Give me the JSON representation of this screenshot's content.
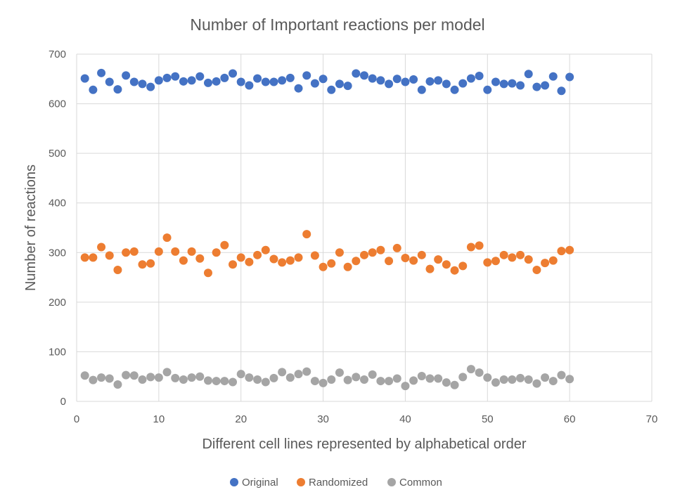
{
  "chart_data": {
    "type": "scatter",
    "title": "Number of Important reactions per model",
    "xlabel": "Different cell lines represented by alphabetical order",
    "ylabel": "Number of reactions",
    "xlim": [
      0,
      70
    ],
    "ylim": [
      0,
      700
    ],
    "xticks": [
      0,
      10,
      20,
      30,
      40,
      50,
      60,
      70
    ],
    "yticks": [
      0,
      100,
      200,
      300,
      400,
      500,
      600,
      700
    ],
    "grid": true,
    "legend_position": "bottom",
    "x": [
      1,
      2,
      3,
      4,
      5,
      6,
      7,
      8,
      9,
      10,
      11,
      12,
      13,
      14,
      15,
      16,
      17,
      18,
      19,
      20,
      21,
      22,
      23,
      24,
      25,
      26,
      27,
      28,
      29,
      30,
      31,
      32,
      33,
      34,
      35,
      36,
      37,
      38,
      39,
      40,
      41,
      42,
      43,
      44,
      45,
      46,
      47,
      48,
      49,
      50,
      51,
      52,
      53,
      54,
      55,
      56,
      57,
      58,
      59,
      60
    ],
    "series": [
      {
        "name": "Original",
        "color": "#4472c4",
        "values": [
          651,
          628,
          662,
          644,
          629,
          657,
          644,
          640,
          634,
          647,
          652,
          655,
          645,
          647,
          655,
          642,
          645,
          652,
          661,
          644,
          637,
          651,
          644,
          644,
          647,
          652,
          631,
          657,
          641,
          650,
          628,
          640,
          636,
          661,
          657,
          651,
          647,
          640,
          650,
          644,
          649,
          628,
          645,
          647,
          640,
          628,
          641,
          651,
          656,
          628,
          644,
          640,
          641,
          637,
          660,
          634,
          637,
          655,
          626,
          654
        ]
      },
      {
        "name": "Randomized",
        "color": "#ed7d31",
        "values": [
          290,
          290,
          311,
          294,
          265,
          300,
          302,
          276,
          278,
          302,
          330,
          302,
          284,
          302,
          288,
          259,
          300,
          315,
          276,
          290,
          281,
          295,
          305,
          287,
          280,
          284,
          290,
          337,
          294,
          271,
          278,
          300,
          271,
          283,
          295,
          300,
          305,
          283,
          309,
          289,
          284,
          295,
          267,
          286,
          276,
          264,
          273,
          311,
          314,
          280,
          283,
          295,
          290,
          295,
          286,
          265,
          279,
          284,
          303,
          305
        ]
      },
      {
        "name": "Common",
        "color": "#a5a5a5",
        "values": [
          52,
          43,
          48,
          46,
          34,
          53,
          52,
          44,
          49,
          48,
          59,
          47,
          44,
          48,
          50,
          42,
          41,
          41,
          39,
          55,
          48,
          44,
          39,
          47,
          59,
          48,
          55,
          60,
          41,
          37,
          44,
          58,
          43,
          49,
          44,
          54,
          41,
          41,
          46,
          31,
          42,
          51,
          46,
          46,
          38,
          33,
          49,
          65,
          58,
          48,
          38,
          44,
          44,
          47,
          44,
          36,
          48,
          41,
          53,
          45
        ]
      }
    ]
  }
}
